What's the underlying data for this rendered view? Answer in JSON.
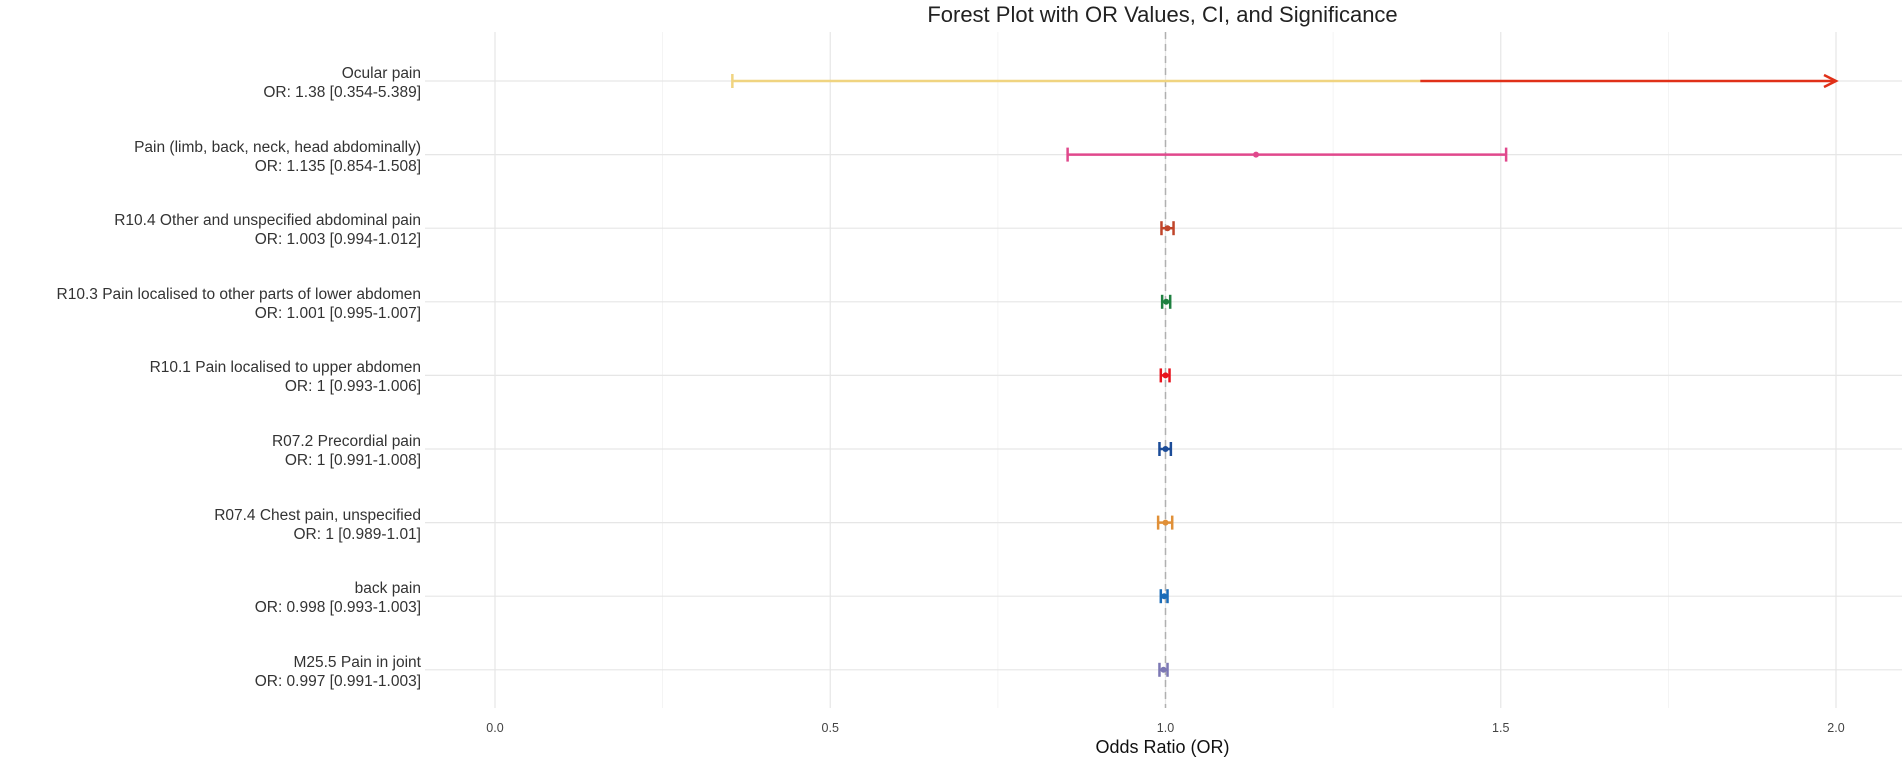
{
  "chart_data": {
    "type": "forest",
    "title": "Forest Plot with OR Values, CI, and Significance",
    "xlabel": "Odds Ratio (OR)",
    "xlim": [
      0,
      2
    ],
    "x_ticks": [
      "0.0",
      "0.5",
      "1.0",
      "1.5",
      "2.0"
    ],
    "reference_line": 1,
    "grid": true,
    "rows": [
      {
        "name": "Ocular pain",
        "or_label": "OR: 1.38 [0.354-5.389]",
        "or": 1.38,
        "lower": 0.354,
        "upper": 5.389,
        "color": "#F0D480",
        "upper_color": "#E03018"
      },
      {
        "name": "Pain (limb, back, neck, head abdominally)",
        "or_label": "OR: 1.135 [0.854-1.508]",
        "or": 1.135,
        "lower": 0.854,
        "upper": 1.508,
        "color": "#E0488C"
      },
      {
        "name": "R10.4 Other and unspecified abdominal pain",
        "or_label": "OR: 1.003 [0.994-1.012]",
        "or": 1.003,
        "lower": 0.994,
        "upper": 1.012,
        "color": "#C0452A"
      },
      {
        "name": "R10.3 Pain localised to other parts of lower abdomen",
        "or_label": "OR: 1.001 [0.995-1.007]",
        "or": 1.001,
        "lower": 0.995,
        "upper": 1.007,
        "color": "#1E8040"
      },
      {
        "name": "R10.1 Pain localised to upper abdomen",
        "or_label": "OR: 1 [0.993-1.006]",
        "or": 1,
        "lower": 0.993,
        "upper": 1.006,
        "color": "#E8141E"
      },
      {
        "name": "R07.2 Precordial pain",
        "or_label": "OR: 1 [0.991-1.008]",
        "or": 1,
        "lower": 0.991,
        "upper": 1.008,
        "color": "#1C4C98"
      },
      {
        "name": "R07.4 Chest pain, unspecified",
        "or_label": "OR: 1 [0.989-1.01]",
        "or": 1,
        "lower": 0.989,
        "upper": 1.01,
        "color": "#E09038"
      },
      {
        "name": "back pain",
        "or_label": "OR: 0.998 [0.993-1.003]",
        "or": 0.998,
        "lower": 0.993,
        "upper": 1.003,
        "color": "#1A6CB8"
      },
      {
        "name": "M25.5 Pain in joint",
        "or_label": "OR: 0.997 [0.991-1.003]",
        "or": 0.997,
        "lower": 0.991,
        "upper": 1.003,
        "color": "#7C78B4"
      }
    ]
  }
}
